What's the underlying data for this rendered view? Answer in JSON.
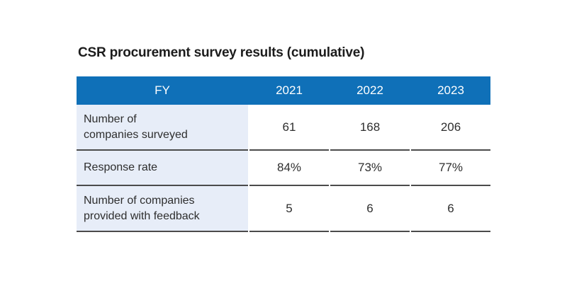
{
  "title": "CSR procurement survey results (cumulative)",
  "table": {
    "header": {
      "label": "FY",
      "years": [
        "2021",
        "2022",
        "2023"
      ]
    },
    "rows": [
      {
        "label": "Number of companies surveyed",
        "lines": [
          "Number of",
          "companies surveyed"
        ],
        "values": [
          "61",
          "168",
          "206"
        ]
      },
      {
        "label": "Response rate",
        "lines": [
          "Response rate"
        ],
        "values": [
          "84%",
          "73%",
          "77%"
        ]
      },
      {
        "label": "Number of companies provided with feedback",
        "lines": [
          "Number of companies",
          "provided with feedback"
        ],
        "values": [
          "5",
          "6",
          "6"
        ]
      }
    ]
  },
  "colors": {
    "header_bg": "#0f70b8",
    "header_text": "#ffffff",
    "label_column_bg": "#e7edf8",
    "divider": "#4b4b4b",
    "body_text": "#2e2e2e",
    "title_text": "#1c1c1c"
  },
  "chart_data": {
    "type": "table",
    "title": "CSR procurement survey results (cumulative)",
    "columns": [
      "FY",
      "2021",
      "2022",
      "2023"
    ],
    "rows": [
      [
        "Number of companies surveyed",
        61,
        168,
        206
      ],
      [
        "Response rate",
        "84%",
        "73%",
        "77%"
      ],
      [
        "Number of companies provided with feedback",
        5,
        6,
        6
      ]
    ],
    "legend_position": "none",
    "grid": "horizontal-dividers"
  }
}
